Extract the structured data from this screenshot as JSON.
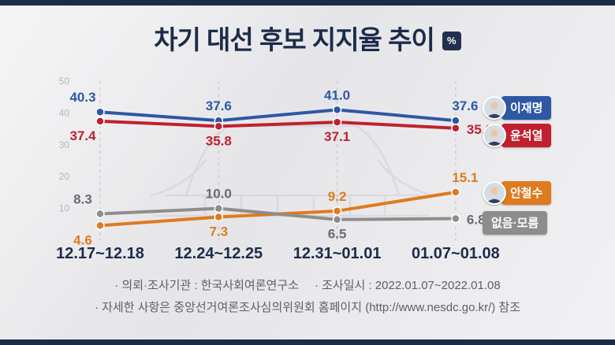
{
  "page": {
    "title": "차기 대선 후보 지지율 추이",
    "unit_badge": "%"
  },
  "chart_data": {
    "type": "line",
    "title": "차기 대선 후보 지지율 추이",
    "unit": "%",
    "categories": [
      "12.17~12.18",
      "12.24~12.25",
      "12.31~01.01",
      "01.07~01.08"
    ],
    "series": [
      {
        "name": "이재명",
        "color": "#2e57a5",
        "label_color": "#2e57a5",
        "has_avatar": true,
        "values": [
          40.3,
          37.6,
          41.0,
          37.6
        ],
        "label_sides": [
          "above",
          "above",
          "above",
          "above"
        ]
      },
      {
        "name": "윤석열",
        "color": "#c0202f",
        "label_color": "#c0202f",
        "has_avatar": true,
        "values": [
          37.4,
          35.8,
          37.1,
          35.2
        ],
        "label_sides": [
          "below",
          "below",
          "below",
          "right"
        ]
      },
      {
        "name": "안철수",
        "color": "#df7a1e",
        "label_color": "#df7a1e",
        "has_avatar": true,
        "values": [
          4.6,
          7.3,
          9.2,
          15.1
        ],
        "label_sides": [
          "below",
          "below",
          "above",
          "above"
        ]
      },
      {
        "name": "없음·모름",
        "color": "#8d8d8d",
        "label_color": "#6b6b6e",
        "has_avatar": false,
        "values": [
          8.3,
          10.0,
          6.5,
          6.8
        ],
        "label_sides": [
          "above",
          "above",
          "below",
          "right"
        ]
      }
    ],
    "ylim": [
      0,
      50
    ],
    "yticks": [
      10,
      20,
      30,
      40,
      50
    ],
    "grid": "dashed-vertical",
    "legend_position": "right"
  },
  "footer": {
    "line1a": "· 의뢰·조사기관 : 한국사회여론연구소",
    "line1b": "· 조사일시 : 2022.01.07~2022.01.08",
    "line2": "· 자세한 사항은 중앙선거여론조사심의위원회 홈페이지 (http://www.nesdc.go.kr/) 참조"
  },
  "colors": {
    "title_navy": "#1c2b4a",
    "edge_bar": "#1d2b49",
    "background": "#e9e9eb",
    "gridline": "#c2c3c7",
    "ytick_text": "#b3b4b8",
    "footer_text": "#5f6065"
  }
}
